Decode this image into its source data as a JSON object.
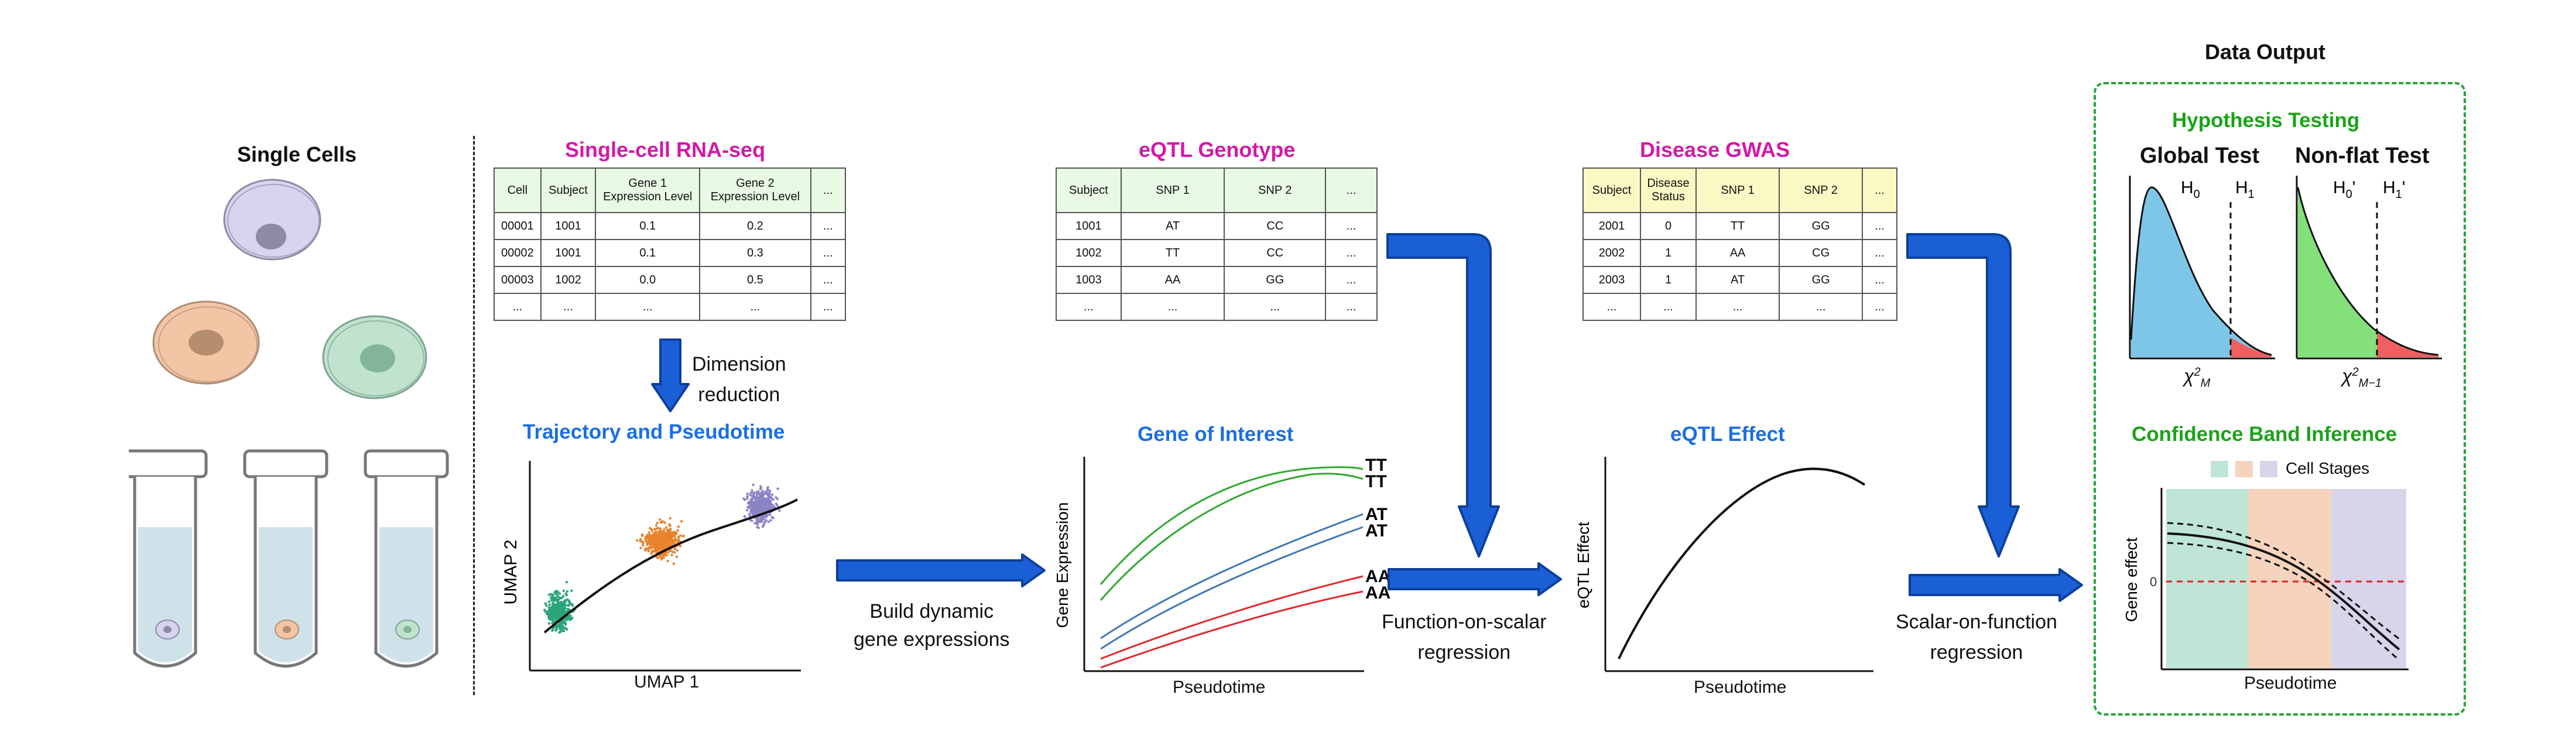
{
  "single_cells": {
    "title": "Single Cells"
  },
  "scrna": {
    "title": "Single-cell RNA-seq",
    "headers": [
      "Cell",
      "Subject",
      "Gene 1\nExpression Level",
      "Gene 2\nExpression Level",
      "..."
    ],
    "rows": [
      [
        "00001",
        "1001",
        "0.1",
        "0.2",
        "..."
      ],
      [
        "00002",
        "1001",
        "0.1",
        "0.3",
        "..."
      ],
      [
        "00003",
        "1002",
        "0.0",
        "0.5",
        "..."
      ],
      [
        "...",
        "...",
        "...",
        "...",
        "..."
      ]
    ],
    "arrow_label": "Dimension\nreduction"
  },
  "trajectory": {
    "title": "Trajectory and Pseudotime",
    "xlabel": "UMAP 1",
    "ylabel": "UMAP 2",
    "colors": {
      "stage1": "#2aa57a",
      "stage2": "#e8842e",
      "stage3": "#8b84c4"
    }
  },
  "build_label": "Build dynamic\ngene expressions",
  "eqtl_genotype": {
    "title": "eQTL Genotype",
    "headers": [
      "Subject",
      "SNP 1",
      "SNP 2",
      "..."
    ],
    "rows": [
      [
        "1001",
        "AT",
        "CC",
        "..."
      ],
      [
        "1002",
        "TT",
        "CC",
        "..."
      ],
      [
        "1003",
        "AA",
        "GG",
        "..."
      ],
      [
        "...",
        "...",
        "...",
        "..."
      ]
    ]
  },
  "gene_of_interest": {
    "title": "Gene of Interest",
    "xlabel": "Pseudotime",
    "ylabel": "Gene Expression",
    "curve_labels": [
      "TT",
      "TT",
      "AT",
      "AT",
      "AA",
      "AA"
    ],
    "colors": {
      "TT": "#2fa82f",
      "AT": "#3f78b5",
      "AA": "#e0262a"
    }
  },
  "fos_label": "Function-on-scalar\nregression",
  "disease_gwas": {
    "title": "Disease GWAS",
    "headers": [
      "Subject",
      "Disease\nStatus",
      "SNP 1",
      "SNP 2",
      "..."
    ],
    "rows": [
      [
        "2001",
        "0",
        "TT",
        "GG",
        "..."
      ],
      [
        "2002",
        "1",
        "AA",
        "CG",
        "..."
      ],
      [
        "2003",
        "1",
        "AT",
        "GG",
        "..."
      ],
      [
        "...",
        "...",
        "...",
        "...",
        "..."
      ]
    ]
  },
  "eqtl_effect": {
    "title": "eQTL Effect",
    "xlabel": "Pseudotime",
    "ylabel": "eQTL Effect"
  },
  "sof_label": "Scalar-on-function\nregression",
  "data_output": {
    "title": "Data Output",
    "hypothesis_title": "Hypothesis Testing",
    "global_test": {
      "title": "Global Test",
      "h0": "H",
      "h0_sub": "0",
      "h1": "H",
      "h1_sub": "1",
      "xlabel": "χ",
      "xlabel_sup": "2",
      "xlabel_sub": "M"
    },
    "nonflat_test": {
      "title": "Non-flat Test",
      "h0": "H",
      "h0_sub": "0",
      "h0_prime": "'",
      "h1": "H",
      "h1_sub": "1",
      "h1_prime": "'",
      "xlabel": "χ",
      "xlabel_sup": "2",
      "xlabel_sub": "M−1"
    },
    "confidence_title": "Confidence Band Inference",
    "legend_label": "Cell Stages",
    "band_xlabel": "Pseudotime",
    "band_ylabel": "Gene effect",
    "zero_tick": "0",
    "colors": {
      "stage1": "#bfe5d6",
      "stage2": "#f6d3bd",
      "stage3": "#d8d5ea",
      "border": "#2aa53a",
      "ref_line": "#e02020"
    }
  },
  "colors": {
    "arrow": "#1a5fd6",
    "arrow_dark": "#0d3f99",
    "blue_fill": "#7ec6e8",
    "green_fill": "#84e07a",
    "red_fill": "#f06060"
  }
}
